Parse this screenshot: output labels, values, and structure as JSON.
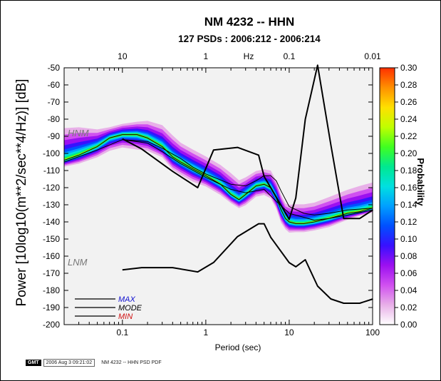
{
  "chart_data": {
    "type": "heatmap",
    "title": "NM 4232 -- HHN",
    "subtitle": "127 PSDs : 2006:212 - 2006:214",
    "xlabel": "Period (sec)",
    "ylabel": "Power [10log10(m**2/sec**4/Hz)] [dB]",
    "top_axis_label": "Hz",
    "x_scale": "log",
    "xlim": [
      0.02,
      100
    ],
    "ylim": [
      -200,
      -50
    ],
    "x_ticks": [
      0.1,
      1,
      10,
      100
    ],
    "x_tick_labels": [
      "0.1",
      "1",
      "10",
      "100"
    ],
    "top_ticks_hz": [
      10,
      1,
      0.1,
      0.01
    ],
    "top_tick_labels": [
      "10",
      "1",
      "0.1",
      "0.01"
    ],
    "y_ticks": [
      -50,
      -60,
      -70,
      -80,
      -90,
      -100,
      -110,
      -120,
      -130,
      -140,
      -150,
      -160,
      -170,
      -180,
      -190,
      -200
    ],
    "y_tick_labels": [
      "-50",
      "-60",
      "-70",
      "-80",
      "-90",
      "-100",
      "-110",
      "-120",
      "-130",
      "-140",
      "-150",
      "-160",
      "-170",
      "-180",
      "-190",
      "-200"
    ],
    "colorbar": {
      "label": "Probability",
      "range": [
        0.0,
        0.3
      ],
      "ticks": [
        0.3,
        0.28,
        0.26,
        0.24,
        0.22,
        0.2,
        0.18,
        0.16,
        0.14,
        0.12,
        0.1,
        0.08,
        0.06,
        0.04,
        0.02,
        0.0
      ],
      "tick_labels": [
        "0.30",
        "0.28",
        "0.26",
        "0.24",
        "0.22",
        "0.20",
        "0.18",
        "0.16",
        "0.14",
        "0.12",
        "0.10",
        "0.08",
        "0.06",
        "0.04",
        "0.02",
        "0.00"
      ],
      "colors": [
        "#ffffff",
        "#e8b0e8",
        "#d050f0",
        "#9c10f0",
        "#3810ff",
        "#0050ff",
        "#00a0ff",
        "#00e0e0",
        "#00e890",
        "#40ff20",
        "#c0ff00",
        "#ffe000",
        "#ff9000",
        "#ff3000"
      ]
    },
    "model_labels": [
      "HNM",
      "LNM"
    ],
    "legend": [
      "MAX",
      "MODE",
      "MIN"
    ],
    "legend_colors": [
      "#1010d0",
      "#000000",
      "#d01010"
    ],
    "pdf_band": {
      "period": [
        0.02,
        0.03,
        0.05,
        0.07,
        0.1,
        0.15,
        0.2,
        0.3,
        0.4,
        0.5,
        0.7,
        1.0,
        1.5,
        2.0,
        2.5,
        3.0,
        4.0,
        5.0,
        6.0,
        7.0,
        8.0,
        9.0,
        10,
        12,
        15,
        20,
        30,
        50,
        70,
        100
      ],
      "mode": [
        -104,
        -101,
        -96,
        -91,
        -89,
        -89,
        -91,
        -96,
        -102,
        -105,
        -109,
        -113,
        -118,
        -124,
        -127,
        -124,
        -119,
        -118,
        -120,
        -126,
        -133,
        -138,
        -140,
        -141,
        -141,
        -140,
        -138,
        -135,
        -134,
        -132
      ],
      "upper": [
        -89,
        -88,
        -88,
        -86,
        -84,
        -83,
        -83,
        -86,
        -92,
        -96,
        -100,
        -104,
        -109,
        -114,
        -118,
        -116,
        -112,
        -111,
        -112,
        -118,
        -126,
        -131,
        -132,
        -132,
        -132,
        -131,
        -128,
        -124,
        -122,
        -120
      ],
      "lower": [
        -107,
        -105,
        -101,
        -97,
        -95,
        -96,
        -97,
        -101,
        -108,
        -111,
        -115,
        -118,
        -123,
        -128,
        -131,
        -129,
        -124,
        -123,
        -125,
        -131,
        -139,
        -143,
        -145,
        -145,
        -145,
        -144,
        -142,
        -138,
        -136,
        -134
      ]
    },
    "series": [
      {
        "name": "MAX",
        "x": [
          0.1,
          0.2,
          0.3,
          0.5,
          0.7,
          1.0,
          2.0,
          3.0,
          4.0,
          5.0,
          6.0,
          7.0,
          8.0,
          10,
          15,
          20,
          30,
          50,
          100
        ],
        "y": [
          -92,
          -93,
          -97,
          -103,
          -108,
          -112,
          -118,
          -119,
          -116,
          -113,
          -113,
          -116,
          -122,
          -131,
          -135,
          -136,
          -135,
          -133,
          -132
        ]
      },
      {
        "name": "MIN",
        "x": [
          0.02,
          0.05,
          0.1,
          0.2,
          0.3,
          0.5,
          1.0,
          2.0,
          3.0,
          5.0,
          7.0,
          10,
          20,
          30,
          50,
          100
        ],
        "y": [
          -105,
          -98,
          -92,
          -94,
          -99,
          -106,
          -114,
          -121,
          -123,
          -121,
          -128,
          -135,
          -139,
          -138,
          -136,
          -133
        ]
      }
    ],
    "models": {
      "NHNM": {
        "x": [
          0.1,
          0.17,
          0.4,
          0.8,
          1.24,
          2.4,
          4.3,
          5.0,
          6.0,
          10,
          12,
          15.6,
          21.9,
          31.6,
          45,
          70,
          101
        ],
        "y": [
          -91.5,
          -97.4,
          -110.5,
          -120.0,
          -98.0,
          -96.5,
          -101.0,
          -113.5,
          -120.0,
          -138.5,
          -126.0,
          -80.1,
          -48.5,
          -95.0,
          -138.0,
          -138.0,
          -133.0
        ]
      },
      "NLNM": {
        "x": [
          0.1,
          0.17,
          0.4,
          0.8,
          1.24,
          2.4,
          4.3,
          5.0,
          6.0,
          10,
          12,
          15.6,
          21.9,
          31.6,
          45,
          70,
          101
        ],
        "y": [
          -168.0,
          -166.7,
          -166.7,
          -169.2,
          -163.7,
          -148.6,
          -141.1,
          -141.1,
          -149.0,
          -163.8,
          -166.2,
          -162.1,
          -177.5,
          -185.0,
          -187.5,
          -187.5,
          -185.0
        ]
      }
    }
  },
  "footer": {
    "logo_text": "GMT",
    "timestamp": "2006 Aug 3 09:21:02",
    "file_label": "NM 4232 -- HHN PSD PDF"
  }
}
